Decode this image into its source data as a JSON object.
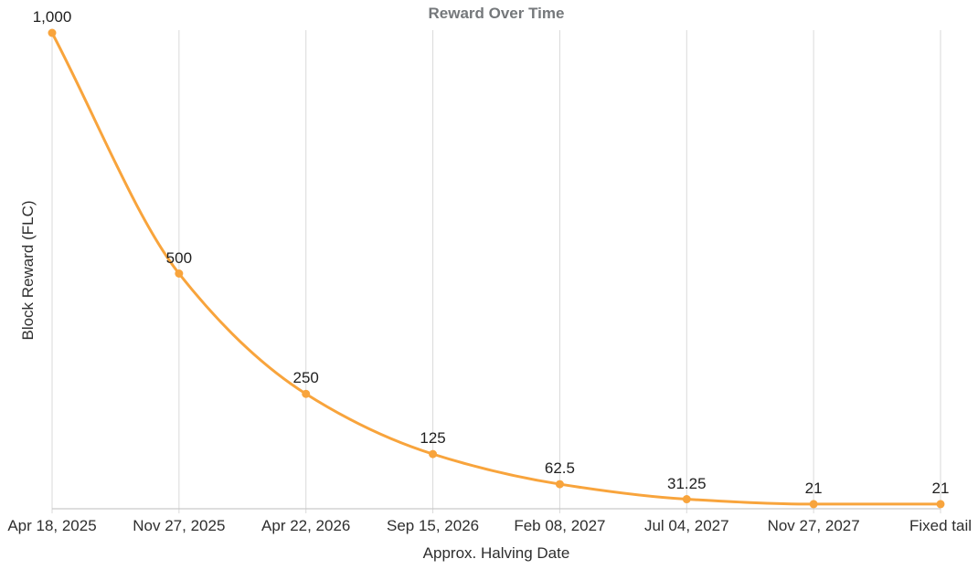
{
  "chart_data": {
    "type": "line",
    "title": "Reward Over Time",
    "xlabel": "Approx. Halving Date",
    "ylabel": "Block Reward (FLC)",
    "categories": [
      "Apr 18, 2025",
      "Nov 27, 2025",
      "Apr 22, 2026",
      "Sep 15, 2026",
      "Feb 08, 2027",
      "Jul 04, 2027",
      "Nov 27, 2027",
      "Fixed tail"
    ],
    "values": [
      1000,
      500,
      250,
      125,
      62.5,
      31.25,
      21,
      21
    ],
    "point_labels": [
      "1,000",
      "500",
      "250",
      "125",
      "62.5",
      "31.25",
      "21",
      "21"
    ],
    "ylim": [
      0,
      1055
    ],
    "grid": "vertical",
    "legend": "none",
    "smooth": true
  },
  "colors": {
    "line": "#F8A43C",
    "marker": "#F8A43C",
    "gridline": "#DADADA",
    "axis_line": "#C9C9C9",
    "tick_text": "#2E2E2E",
    "title_text": "#75787B",
    "label_text": "#1F1F1F",
    "background": "#FFFFFF"
  }
}
